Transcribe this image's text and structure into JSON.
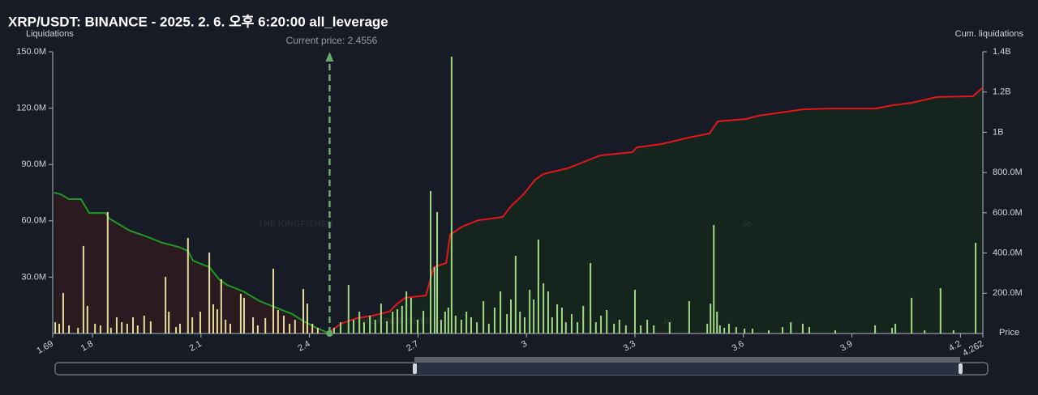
{
  "chart_data": {
    "type": "bar",
    "title": "XRP/USDT: BINANCE - 2025. 2. 6. 오후 6:20:00 all_leverage",
    "y_label": "Liquidations",
    "y2_label": "Cum. liquidations",
    "x_label": "Price",
    "annotation": "Current price: 2.4556",
    "current_price": 2.4556,
    "watermark": "THE KINGFISHER",
    "watermark_suffix": ".io",
    "xlim": [
      1.69,
      4.262
    ],
    "xticks": [
      1.69,
      1.8,
      2.1,
      2.4,
      2.7,
      3,
      3.3,
      3.6,
      3.9,
      4.2,
      4.262
    ],
    "ylim": [
      0,
      150
    ],
    "yticks": [
      {
        "value": 30,
        "label": "30.0M"
      },
      {
        "value": 60,
        "label": "60.0M"
      },
      {
        "value": 90,
        "label": "90.0M"
      },
      {
        "value": 120,
        "label": "120.0M"
      },
      {
        "value": 150,
        "label": "150.0M"
      }
    ],
    "y2lim": [
      0,
      1400
    ],
    "y2ticks": [
      {
        "value": 200,
        "label": "200.0M"
      },
      {
        "value": 400,
        "label": "400.0M"
      },
      {
        "value": 600,
        "label": "600.0M"
      },
      {
        "value": 800,
        "label": "800.0M"
      },
      {
        "value": 1000,
        "label": "1B"
      },
      {
        "value": 1200,
        "label": "1.2B"
      },
      {
        "value": 1400,
        "label": "1.4B"
      }
    ],
    "series": [
      {
        "type": "area",
        "axis": "y2",
        "color": "#1e9a22",
        "fill": "#2b1a20",
        "x": [
          1.694,
          1.712,
          1.735,
          1.768,
          1.791,
          1.836,
          1.847,
          1.903,
          1.948,
          1.993,
          2.038,
          2.064,
          2.078,
          2.123,
          2.15,
          2.172,
          2.217,
          2.262,
          2.307,
          2.352,
          2.385,
          2.419,
          2.4556
        ],
        "values": [
          700,
          692,
          668,
          668,
          599,
          599,
          571,
          511,
          483,
          451,
          430,
          410,
          362,
          330,
          270,
          241,
          209,
          161,
          129,
          97,
          60,
          28,
          0
        ]
      },
      {
        "type": "area",
        "axis": "y2",
        "color": "#e3161b",
        "fill": "#15251e",
        "x": [
          2.4556,
          2.486,
          2.531,
          2.576,
          2.621,
          2.643,
          2.665,
          2.722,
          2.744,
          2.778,
          2.789,
          2.822,
          2.867,
          2.934,
          2.957,
          2.992,
          3.024,
          3.047,
          3.114,
          3.159,
          3.204,
          3.293,
          3.305,
          3.372,
          3.45,
          3.506,
          3.529,
          3.607,
          3.641,
          3.686,
          3.764,
          3.831,
          3.966,
          4.011,
          4.067,
          4.134,
          4.235,
          4.262
        ],
        "values": [
          8,
          48,
          76,
          89,
          109,
          149,
          177,
          189,
          330,
          350,
          491,
          531,
          563,
          579,
          632,
          692,
          764,
          793,
          821,
          853,
          885,
          901,
          925,
          941,
          974,
          994,
          1054,
          1066,
          1082,
          1094,
          1114,
          1118,
          1118,
          1134,
          1147,
          1175,
          1179,
          1223
        ]
      },
      {
        "type": "bar",
        "color": "#e6dc9c",
        "x": [
          1.697,
          1.708,
          1.719,
          1.735,
          1.76,
          1.775,
          1.786,
          1.807,
          1.822,
          1.842,
          1.851,
          1.867,
          1.881,
          1.896,
          1.912,
          1.925,
          1.943,
          1.961,
          2.002,
          2.011,
          2.031,
          2.042,
          2.064,
          2.076,
          2.098,
          2.123,
          2.134,
          2.145,
          2.156,
          2.168,
          2.181,
          2.21,
          2.219,
          2.244,
          2.257,
          2.278,
          2.3,
          2.313,
          2.329,
          2.345,
          2.36,
          2.383,
          2.394,
          2.408,
          2.423
        ],
        "values": [
          6.0,
          5.2,
          21.6,
          4.3,
          3.0,
          46.6,
          14.7,
          5.2,
          4.3,
          64.7,
          3.0,
          8.6,
          6.0,
          5.2,
          8.6,
          4.3,
          9.5,
          6.5,
          30.2,
          11.6,
          3.4,
          5.2,
          50.9,
          8.6,
          11.6,
          43.1,
          15.5,
          12.9,
          28.9,
          7.3,
          5.2,
          21.1,
          19.0,
          8.6,
          4.3,
          8.2,
          34.5,
          12.5,
          9.5,
          5.2,
          7.3,
          23.7,
          15.9,
          5.2,
          3.0
        ]
      },
      {
        "type": "bar",
        "color": "#a2d886",
        "x": [
          2.468,
          2.486,
          2.508,
          2.522,
          2.538,
          2.551,
          2.567,
          2.582,
          2.598,
          2.614,
          2.63,
          2.643,
          2.656,
          2.668,
          2.681,
          2.699,
          2.715,
          2.735,
          2.746,
          2.753,
          2.764,
          2.775,
          2.784,
          2.793,
          2.804,
          2.82,
          2.834,
          2.847,
          2.863,
          2.881,
          2.896,
          2.912,
          2.928,
          2.946,
          2.957,
          2.97,
          2.982,
          2.995,
          3.009,
          3.02,
          3.033,
          3.047,
          3.06,
          3.071,
          3.085,
          3.098,
          3.109,
          3.125,
          3.141,
          3.157,
          3.177,
          3.192,
          3.206,
          3.222,
          3.242,
          3.257,
          3.275,
          3.3,
          3.316,
          3.334,
          3.352,
          3.396,
          3.45,
          3.5,
          3.509,
          3.518,
          3.527,
          3.535,
          3.547,
          3.56,
          3.58,
          3.603,
          3.625,
          3.67,
          3.708,
          3.731,
          3.764,
          3.782,
          3.854,
          3.964,
          4.011,
          4.02,
          4.065,
          4.101,
          4.145,
          4.181,
          4.242
        ],
        "values": [
          3.0,
          6.0,
          25.9,
          7.3,
          11.6,
          6.0,
          9.5,
          7.3,
          15.9,
          6.5,
          11.6,
          12.9,
          14.7,
          22.4,
          19.0,
          7.3,
          12.1,
          75.9,
          35.3,
          64.7,
          7.3,
          11.6,
          13.8,
          147.4,
          9.5,
          7.3,
          11.6,
          8.6,
          6.0,
          17.2,
          5.2,
          13.8,
          22.4,
          10.3,
          18.1,
          41.4,
          11.6,
          8.6,
          23.3,
          18.1,
          50.0,
          26.7,
          22.4,
          8.6,
          15.5,
          13.8,
          6.0,
          10.3,
          6.0,
          14.7,
          37.5,
          6.0,
          9.5,
          12.5,
          5.2,
          7.3,
          4.3,
          23.3,
          4.3,
          7.3,
          4.3,
          6.0,
          17.2,
          5.2,
          15.9,
          57.8,
          11.6,
          4.3,
          3.0,
          5.2,
          3.4,
          2.6,
          2.6,
          1.7,
          3.4,
          6.0,
          5.2,
          3.4,
          1.7,
          4.3,
          3.0,
          5.2,
          19.0,
          1.7,
          24.1,
          1.7,
          48.3
        ]
      }
    ]
  }
}
